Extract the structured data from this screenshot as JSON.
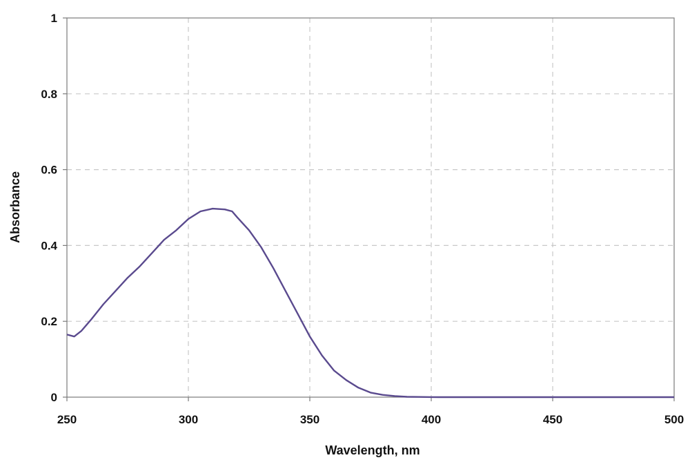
{
  "chart_data": {
    "type": "line",
    "title": "",
    "xlabel": "Wavelength, nm",
    "ylabel": "Absorbance",
    "xlim": [
      250,
      500
    ],
    "ylim": [
      0,
      1
    ],
    "x_ticks": [
      250,
      300,
      350,
      400,
      450,
      500
    ],
    "x_tick_labels": [
      "250",
      "300",
      "350",
      "400",
      "450",
      "500"
    ],
    "y_ticks": [
      0,
      0.2,
      0.4,
      0.6,
      0.8,
      1
    ],
    "y_tick_labels": [
      "0",
      "0.2",
      "0.4",
      "0.6",
      "0.8",
      "1"
    ],
    "grid": true,
    "legend": "none",
    "colors": {
      "line": "#5a4a8e",
      "grid": "#c8c8c8",
      "axis": "#7a7a7a"
    },
    "series": [
      {
        "x": [
          250,
          253,
          256,
          260,
          265,
          270,
          275,
          280,
          285,
          290,
          295,
          300,
          305,
          310,
          315,
          318,
          320,
          325,
          330,
          335,
          340,
          345,
          350,
          355,
          360,
          365,
          370,
          375,
          380,
          385,
          390,
          395,
          400,
          403,
          410,
          420,
          450,
          475,
          500
        ],
        "y": [
          0.165,
          0.16,
          0.175,
          0.205,
          0.245,
          0.28,
          0.315,
          0.345,
          0.38,
          0.415,
          0.44,
          0.47,
          0.49,
          0.497,
          0.495,
          0.49,
          0.475,
          0.44,
          0.395,
          0.34,
          0.28,
          0.22,
          0.16,
          0.11,
          0.07,
          0.045,
          0.025,
          0.012,
          0.006,
          0.003,
          0.001,
          0.0005,
          0.0002,
          0,
          0,
          0,
          0,
          0,
          0
        ]
      }
    ]
  }
}
